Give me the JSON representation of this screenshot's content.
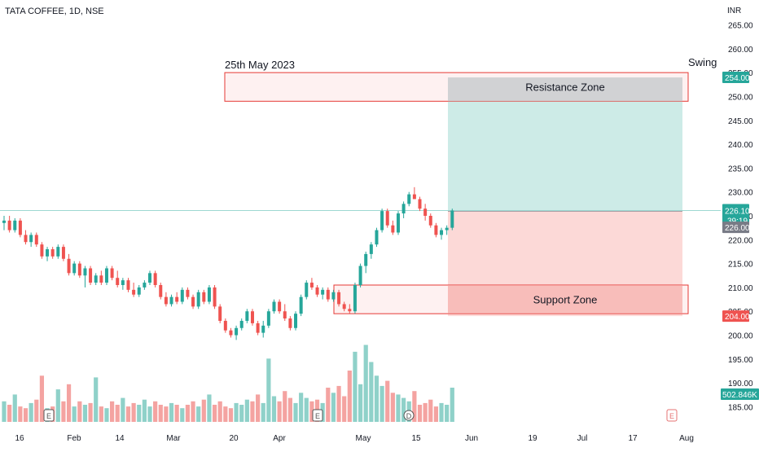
{
  "header": {
    "symbol_title": "TATA COFFEE, 1D, NSE",
    "currency": "INR"
  },
  "annotations": {
    "date_note": "25th May 2023",
    "swing_note": "Swing",
    "resistance_zone": "Resistance Zone",
    "support_zone": "Support Zone"
  },
  "price_badges": {
    "last_price": "226.10",
    "countdown": "39:19",
    "reference_price": "226.00",
    "target_price": "254.00",
    "stop_price": "204.00",
    "volume_value": "502.846K"
  },
  "event_markers": [
    "E",
    "E",
    "D",
    "E"
  ],
  "colors": {
    "up": "#26a69a",
    "down": "#ef5350",
    "up_volume": "#8fd1c9",
    "down_volume": "#f4a3a1",
    "target_fill": "#cdebe7",
    "stop_fill": "#fcd9d7",
    "zone_border": "#e53935",
    "zone_fill": "#fde6e5",
    "price_line": "#9ed8d2"
  },
  "chart_data": {
    "type": "candlestick",
    "title": "TATA COFFEE, 1D, NSE",
    "y_unit": "INR",
    "ylim": [
      181.5,
      268.5
    ],
    "y_ticks": [
      185,
      190,
      195,
      200,
      205,
      210,
      215,
      220,
      225,
      230,
      235,
      240,
      245,
      250,
      255,
      260,
      265
    ],
    "y_tick_labels": [
      "185.00",
      "190.00",
      "195.00",
      "200.00",
      "205.00",
      "210.00",
      "215.00",
      "220.00",
      "225.00",
      "230.00",
      "235.00",
      "240.00",
      "245.00",
      "250.00",
      "255.00",
      "260.00",
      "265.00"
    ],
    "x_tick_labels": [
      "16",
      "Feb",
      "14",
      "Mar",
      "20",
      "Apr",
      "May",
      "15",
      "Jun",
      "19",
      "Jul",
      "17",
      "Aug"
    ],
    "grid": false,
    "ohlc": [
      [
        223.5,
        225.0,
        222.0,
        224.0
      ],
      [
        224.0,
        225.0,
        221.5,
        222.0
      ],
      [
        222.0,
        224.5,
        221.5,
        224.0
      ],
      [
        224.0,
        224.5,
        220.5,
        221.0
      ],
      [
        221.0,
        222.0,
        219.0,
        219.5
      ],
      [
        219.5,
        221.5,
        218.5,
        221.0
      ],
      [
        221.0,
        221.5,
        218.5,
        219.0
      ],
      [
        219.0,
        219.5,
        216.0,
        216.5
      ],
      [
        216.5,
        218.5,
        215.5,
        218.0
      ],
      [
        218.0,
        218.5,
        216.0,
        216.5
      ],
      [
        216.5,
        219.0,
        216.0,
        218.5
      ],
      [
        218.5,
        219.0,
        215.5,
        216.0
      ],
      [
        216.0,
        217.0,
        212.5,
        213.0
      ],
      [
        213.0,
        215.5,
        212.5,
        215.0
      ],
      [
        215.0,
        215.5,
        212.0,
        212.5
      ],
      [
        212.5,
        214.5,
        210.0,
        214.0
      ],
      [
        214.0,
        214.5,
        210.5,
        211.0
      ],
      [
        211.0,
        213.0,
        210.5,
        212.5
      ],
      [
        212.5,
        213.5,
        210.5,
        211.0
      ],
      [
        211.0,
        214.5,
        210.5,
        214.0
      ],
      [
        214.0,
        214.5,
        211.5,
        212.0
      ],
      [
        212.0,
        213.5,
        210.0,
        210.5
      ],
      [
        210.5,
        212.0,
        209.5,
        211.5
      ],
      [
        211.5,
        212.0,
        209.0,
        209.5
      ],
      [
        209.5,
        211.0,
        208.0,
        208.5
      ],
      [
        208.5,
        210.5,
        208.0,
        210.0
      ],
      [
        210.0,
        211.5,
        209.5,
        211.0
      ],
      [
        211.0,
        213.5,
        210.5,
        213.0
      ],
      [
        213.0,
        213.5,
        210.0,
        210.5
      ],
      [
        210.5,
        211.0,
        207.5,
        208.0
      ],
      [
        208.0,
        209.0,
        206.0,
        206.5
      ],
      [
        206.5,
        208.5,
        206.0,
        208.0
      ],
      [
        208.0,
        209.0,
        206.5,
        207.0
      ],
      [
        207.0,
        210.0,
        206.5,
        209.5
      ],
      [
        209.5,
        210.0,
        207.5,
        208.0
      ],
      [
        208.0,
        208.5,
        205.5,
        206.0
      ],
      [
        206.0,
        209.5,
        205.5,
        209.0
      ],
      [
        209.0,
        209.5,
        206.5,
        207.0
      ],
      [
        207.0,
        210.5,
        206.5,
        210.0
      ],
      [
        210.0,
        210.5,
        205.5,
        206.0
      ],
      [
        206.0,
        206.5,
        202.5,
        203.0
      ],
      [
        203.0,
        203.5,
        200.5,
        201.0
      ],
      [
        201.0,
        201.5,
        199.5,
        200.0
      ],
      [
        200.0,
        202.0,
        199.0,
        201.5
      ],
      [
        201.5,
        203.5,
        201.0,
        203.0
      ],
      [
        203.0,
        205.5,
        202.5,
        205.0
      ],
      [
        205.0,
        205.5,
        202.0,
        202.5
      ],
      [
        202.5,
        203.0,
        200.0,
        200.5
      ],
      [
        200.5,
        203.0,
        199.5,
        202.0
      ],
      [
        202.0,
        205.5,
        201.5,
        205.0
      ],
      [
        205.0,
        207.5,
        204.5,
        207.0
      ],
      [
        207.0,
        207.5,
        204.5,
        205.0
      ],
      [
        205.0,
        206.5,
        203.0,
        203.5
      ],
      [
        203.5,
        204.0,
        201.0,
        201.5
      ],
      [
        201.5,
        205.0,
        201.0,
        204.5
      ],
      [
        204.5,
        208.5,
        204.0,
        208.0
      ],
      [
        208.0,
        211.5,
        207.5,
        211.0
      ],
      [
        211.0,
        212.0,
        209.5,
        210.0
      ],
      [
        210.0,
        210.5,
        208.0,
        208.5
      ],
      [
        208.5,
        210.0,
        207.5,
        209.5
      ],
      [
        209.5,
        210.0,
        207.0,
        207.5
      ],
      [
        207.5,
        209.5,
        207.0,
        209.0
      ],
      [
        209.0,
        209.5,
        206.0,
        206.5
      ],
      [
        206.5,
        207.0,
        205.0,
        205.5
      ],
      [
        205.5,
        206.5,
        204.5,
        205.0
      ],
      [
        205.0,
        211.0,
        204.5,
        210.5
      ],
      [
        210.5,
        215.0,
        210.0,
        214.5
      ],
      [
        214.5,
        217.5,
        213.0,
        217.0
      ],
      [
        217.0,
        219.5,
        216.0,
        219.0
      ],
      [
        219.0,
        222.5,
        218.5,
        222.0
      ],
      [
        222.0,
        226.5,
        221.5,
        226.0
      ],
      [
        226.0,
        226.5,
        222.5,
        223.0
      ],
      [
        223.0,
        224.0,
        221.0,
        221.5
      ],
      [
        221.5,
        226.0,
        221.0,
        225.5
      ],
      [
        225.5,
        228.0,
        224.5,
        227.5
      ],
      [
        227.5,
        230.0,
        227.0,
        229.5
      ],
      [
        229.5,
        231.0,
        228.5,
        228.5
      ],
      [
        228.5,
        229.0,
        226.0,
        226.5
      ],
      [
        226.5,
        227.5,
        224.0,
        225.0
      ],
      [
        225.0,
        225.5,
        222.5,
        223.0
      ],
      [
        223.0,
        223.5,
        220.5,
        221.0
      ],
      [
        221.0,
        222.5,
        220.0,
        222.0
      ],
      [
        222.0,
        223.0,
        221.0,
        222.5
      ],
      [
        222.5,
        226.5,
        222.0,
        226.1
      ]
    ],
    "volume": [
      12,
      10,
      16,
      9,
      8,
      11,
      13,
      27,
      8,
      9,
      19,
      12,
      22,
      9,
      12,
      10,
      11,
      26,
      9,
      8,
      12,
      10,
      14,
      9,
      11,
      10,
      13,
      9,
      12,
      10,
      9,
      11,
      10,
      8,
      10,
      12,
      9,
      13,
      16,
      10,
      12,
      9,
      8,
      11,
      10,
      13,
      12,
      16,
      11,
      37,
      15,
      12,
      18,
      14,
      11,
      17,
      14,
      12,
      13,
      11,
      20,
      17,
      21,
      15,
      30,
      41,
      22,
      45,
      35,
      27,
      21,
      24,
      17,
      16,
      14,
      12,
      18,
      10,
      11,
      13,
      9,
      11,
      10,
      20
    ],
    "volume_last_label": "502.846K",
    "current_price": 226.1,
    "long_position": {
      "entry": 226.0,
      "target": 254.0,
      "stop": 204.0
    },
    "resistance_zone": {
      "label": "Resistance Zone",
      "lower": 249.0,
      "upper": 255.0
    },
    "support_zone": {
      "label": "Support Zone",
      "lower": 204.5,
      "upper": 210.5
    }
  }
}
